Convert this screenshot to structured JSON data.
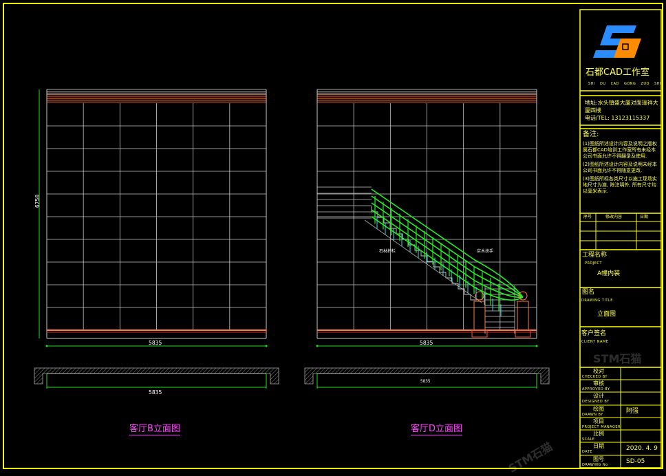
{
  "company": {
    "name": "石都CAD工作室",
    "pinyin": "SHI DU CAD GONG ZUO SHI",
    "logo": "SD-logo",
    "logo_colors": {
      "s": "#2a8cff",
      "d": "#ff8c00"
    }
  },
  "address": {
    "line1": "地址:水头镇盛大厦对面瑞祥大厦四楼",
    "phone": "电话/TEL: 13123115337"
  },
  "notes": {
    "heading": "备注:",
    "items": [
      "(1)图纸所述设计内容及说明之版权属石都CAD培训工作室所有未经本公司书面允许不得翻录及使用.",
      "(2)图纸所述设计内容及说明未经本公司书面允许不得随意更改.",
      "(3)图纸所标各类尺寸以施工现场实地尺寸为准, 除注明外, 所有尺寸均以毫米表示."
    ]
  },
  "revision_table": {
    "headers": [
      "序号",
      "修改内容",
      "日期"
    ]
  },
  "project": {
    "label": "工程名称",
    "label_en": "PROJECT",
    "value": "A幢内装"
  },
  "drawing_title": {
    "label": "图名",
    "label_en": "DRAWING TITLE",
    "value": "立面图"
  },
  "client": {
    "label": "客户签名",
    "label_en": "CLIENT NAME"
  },
  "sign_rows": [
    {
      "label": "校对",
      "label_en": "CHECKED BY",
      "value": ""
    },
    {
      "label": "审核",
      "label_en": "APPROVED BY",
      "value": ""
    },
    {
      "label": "设计",
      "label_en": "DESIGNED BY",
      "value": ""
    },
    {
      "label": "绘图",
      "label_en": "DRAWN BY",
      "value": "阿强"
    },
    {
      "label": "项目",
      "label_en": "PROJECT MANAGER",
      "value": ""
    },
    {
      "label": "比例",
      "label_en": "SCALE",
      "value": ""
    },
    {
      "label": "日期",
      "label_en": "DATE",
      "value": "2020. 4. 9"
    },
    {
      "label": "图号",
      "label_en": "DRAWING No",
      "value": "SD-05"
    }
  ],
  "drawings": {
    "left": {
      "title": "客厅B立面图",
      "height_dim": "6750",
      "width_dim": "5835",
      "plan_dim": "5835"
    },
    "right": {
      "title": "客厅D立面图",
      "width_dim": "5835",
      "plan_dim": "5835",
      "label_rail": "石材护栏",
      "label_handrail": "实木扶手"
    }
  },
  "watermark": "STM石猫",
  "colors": {
    "border": "#ffff00",
    "grid": "#c8c8c8",
    "cornice": "#ff8040",
    "dimension": "#22dd22",
    "title": "#ff44ff",
    "rail": "#22ee22",
    "baluster": "#33dddd"
  }
}
